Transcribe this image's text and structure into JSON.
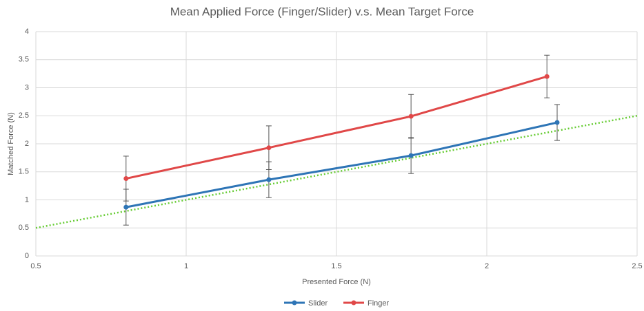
{
  "chart_data": {
    "type": "line",
    "title": "Mean Applied Force (Finger/Slider) v.s. Mean Target Force",
    "x_label": "Presented Force (N)",
    "y_label": "Matched Force (N)",
    "series": [
      {
        "name": "Slider",
        "color": "#2e75b6",
        "x": [
          0.8,
          1.275,
          1.748,
          2.234
        ],
        "values": [
          0.87,
          1.36,
          1.79,
          2.38
        ],
        "errors": [
          0.32,
          0.32,
          0.32,
          0.32
        ]
      },
      {
        "name": "Finger",
        "color": "#e04848",
        "x": [
          0.8,
          1.275,
          1.748,
          2.2
        ],
        "values": [
          1.38,
          1.93,
          2.49,
          3.2
        ],
        "errors": [
          0.4,
          0.39,
          0.39,
          0.38
        ]
      }
    ],
    "reference_line": {
      "x": [
        0.5,
        2.5
      ],
      "values": [
        0.5,
        2.5
      ],
      "color": "#66cc33"
    },
    "xlim": [
      0.5,
      2.5
    ],
    "xticks": [
      0.5,
      1,
      1.5,
      2,
      2.5
    ],
    "ylim": [
      0,
      4
    ],
    "yticks": [
      0,
      0.5,
      1,
      1.5,
      2,
      2.5,
      3,
      3.5,
      4
    ],
    "grid": true,
    "legend": "bottom"
  }
}
